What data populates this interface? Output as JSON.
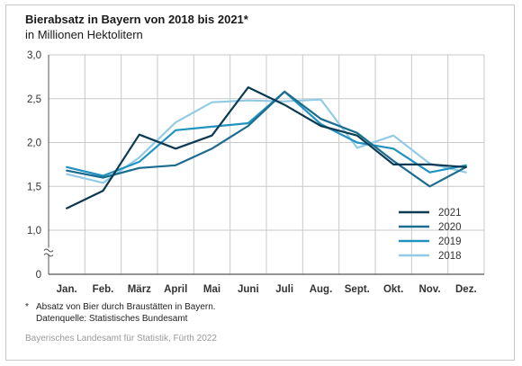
{
  "header": {
    "title": "Bierabsatz in Bayern von 2018 bis 2021*",
    "subtitle": "in Millionen Hektolitern"
  },
  "footnote": {
    "marker": "*",
    "text": "Absatz von Bier durch Braustätten in Bayern.",
    "source": "Datenquelle: Statistisches Bundesamt"
  },
  "credit": "Bayerisches Landesamt für Statistik, Fürth 2022",
  "chart_data": {
    "type": "line",
    "categories": [
      "Jan.",
      "Feb.",
      "März",
      "April",
      "Mai",
      "Juni",
      "Juli",
      "Aug.",
      "Sept.",
      "Okt.",
      "Nov.",
      "Dez."
    ],
    "ylim": [
      0,
      3.0
    ],
    "y_ticks": [
      "0",
      "1,0",
      "1,5",
      "2,0",
      "2,5",
      "3,0"
    ],
    "y_tick_values": [
      0,
      1.0,
      1.5,
      2.0,
      2.5,
      3.0
    ],
    "axis_break": "between 0 and 1,0",
    "grid": "horizontal and vertical",
    "legend_position": "bottom-right",
    "series": [
      {
        "name": "2021",
        "color": "#0c3a52",
        "values": [
          1.25,
          1.45,
          2.09,
          1.93,
          2.08,
          2.63,
          2.43,
          2.19,
          2.08,
          1.75,
          1.75,
          1.72
        ]
      },
      {
        "name": "2020",
        "color": "#1a6d8f",
        "values": [
          1.68,
          1.6,
          1.71,
          1.74,
          1.93,
          2.19,
          2.58,
          2.27,
          2.11,
          1.79,
          1.5,
          1.72
        ]
      },
      {
        "name": "2019",
        "color": "#2093c0",
        "values": [
          1.72,
          1.62,
          1.78,
          2.14,
          2.18,
          2.22,
          2.58,
          2.21,
          2.0,
          1.93,
          1.66,
          1.74
        ]
      },
      {
        "name": "2018",
        "color": "#93cbe6",
        "values": [
          1.64,
          1.54,
          1.83,
          2.23,
          2.46,
          2.48,
          2.47,
          2.49,
          1.94,
          2.08,
          1.76,
          1.66
        ]
      }
    ]
  }
}
